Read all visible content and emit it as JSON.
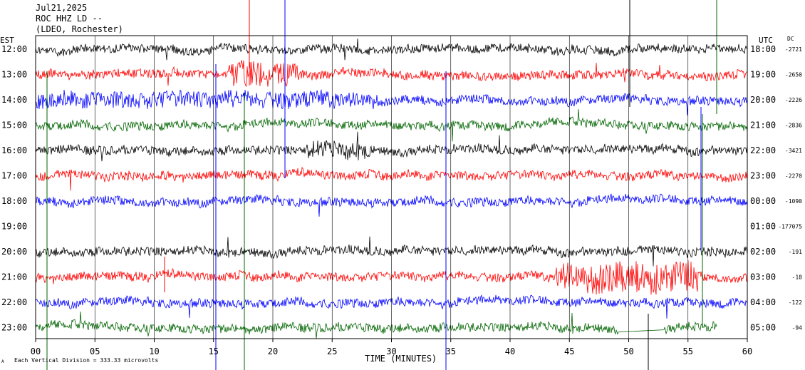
{
  "header": {
    "line1": "Jul21,2025",
    "line2": "ROC HHZ LD --",
    "line3": "(LDEO, Rochester)"
  },
  "axis": {
    "left_title": "EST",
    "right_title": "UTC",
    "dc_title": "DC",
    "xlabel": "TIME (MINUTES)",
    "footer": "Each Vertical Division = 333.33 microvolts",
    "xticks": [
      "00",
      "05",
      "10",
      "15",
      "20",
      "25",
      "30",
      "35",
      "40",
      "45",
      "50",
      "55",
      "60"
    ]
  },
  "colors": {
    "cycle": [
      "#000000",
      "#ff0000",
      "#0000ff",
      "#006400"
    ],
    "background": "#ffffff"
  },
  "chart_data": {
    "type": "line",
    "title": "Jul21,2025 ROC HHZ LD -- (LDEO, Rochester)",
    "xlabel": "TIME (MINUTES)",
    "ylabel": "",
    "xlim": [
      0,
      60
    ],
    "grid": true,
    "vertical_division": "333.33 microvolts",
    "rows": [
      {
        "est": "12:00",
        "utc": "18:00",
        "dc": "-2721",
        "color": "#000000"
      },
      {
        "est": "13:00",
        "utc": "19:00",
        "dc": "-2650",
        "color": "#ff0000"
      },
      {
        "est": "14:00",
        "utc": "20:00",
        "dc": "-2226",
        "color": "#0000ff"
      },
      {
        "est": "15:00",
        "utc": "21:00",
        "dc": "-2836",
        "color": "#006400"
      },
      {
        "est": "16:00",
        "utc": "22:00",
        "dc": "-3421",
        "color": "#000000"
      },
      {
        "est": "17:00",
        "utc": "23:00",
        "dc": "-2270",
        "color": "#ff0000"
      },
      {
        "est": "18:00",
        "utc": "00:00",
        "dc": "-1090",
        "color": "#0000ff"
      },
      {
        "est": "19:00",
        "utc": "01:00",
        "dc": "-177075",
        "color": "#006400"
      },
      {
        "est": "20:00",
        "utc": "02:00",
        "dc": "-191",
        "color": "#000000"
      },
      {
        "est": "21:00",
        "utc": "03:00",
        "dc": "-18",
        "color": "#ff0000"
      },
      {
        "est": "22:00",
        "utc": "04:00",
        "dc": "-122",
        "color": "#0000ff"
      },
      {
        "est": "23:00",
        "utc": "05:00",
        "dc": "-94",
        "color": "#006400"
      }
    ]
  }
}
